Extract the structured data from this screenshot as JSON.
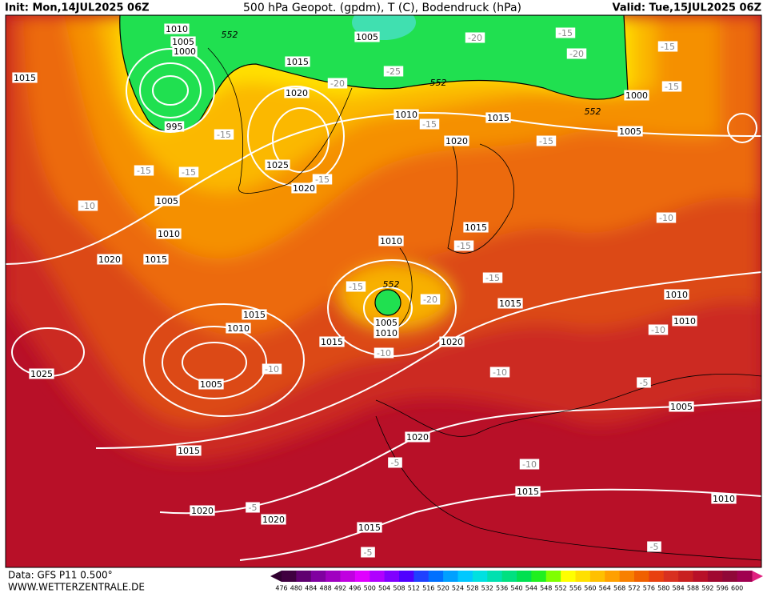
{
  "header": {
    "init": "Init: Mon,14JUL2025 06Z",
    "title": "500 hPa Geopot. (gpdm), T (C), Bodendruck (hPa)",
    "valid": "Valid: Tue,15JUL2025 06Z"
  },
  "map": {
    "isobar_labels": [
      1010,
      1005,
      1000,
      995,
      1015,
      1015,
      1020,
      1005,
      1010,
      1015,
      1020,
      1025,
      1020,
      1005,
      1010,
      1015,
      1020,
      1000,
      1005,
      1015,
      1010,
      1015,
      1010,
      1015,
      1020,
      1015,
      1005,
      1010,
      1005,
      1025,
      1020,
      1015,
      1020,
      1020,
      1015,
      1015,
      1010,
      1010,
      1005,
      1010
    ],
    "temperature_labels": [
      -15,
      -15,
      -10,
      -15,
      -15,
      -20,
      -25,
      -20,
      -20,
      -15,
      -15,
      -15,
      -15,
      -15,
      -15,
      -15,
      -15,
      -20,
      -10,
      -10,
      -10,
      -10,
      -10,
      -5,
      -5,
      -10,
      -5,
      -5,
      -5
    ],
    "height_labels": [
      552,
      552,
      552,
      552
    ]
  },
  "colorbar": {
    "labels": [
      476,
      480,
      484,
      488,
      492,
      496,
      500,
      504,
      508,
      512,
      516,
      520,
      524,
      528,
      532,
      536,
      540,
      544,
      548,
      552,
      556,
      560,
      564,
      568,
      572,
      576,
      580,
      584,
      588,
      592,
      596,
      600
    ]
  },
  "footer": {
    "source": "Data: GFS P11 0.500°",
    "website": "WWW.WETTERZENTRALE.DE"
  }
}
